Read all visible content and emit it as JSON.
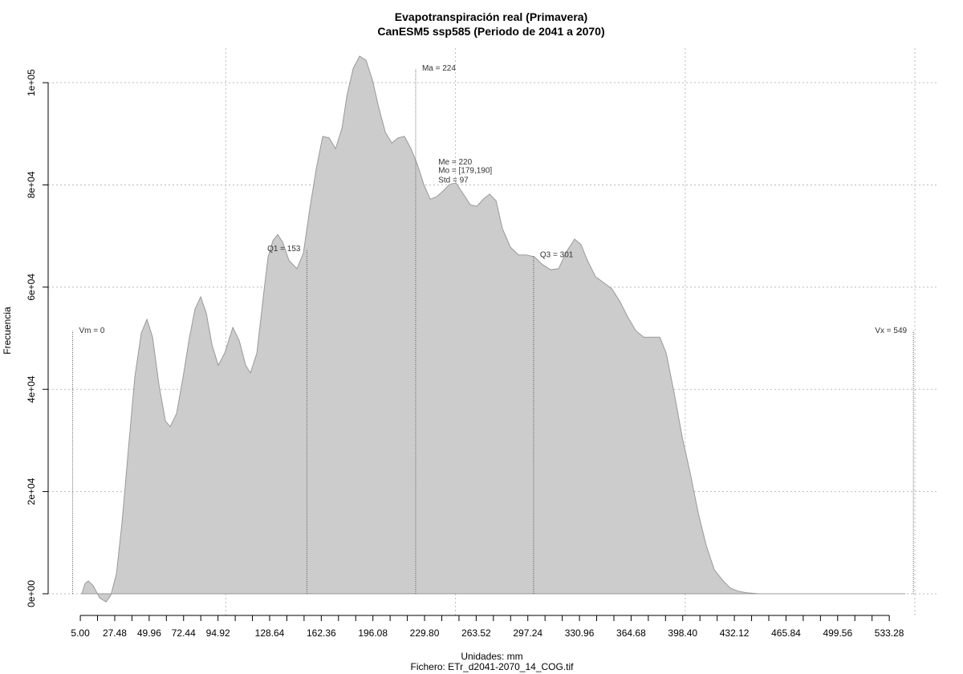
{
  "chart_data": {
    "type": "area",
    "title": "Evapotranspiración real (Primavera)",
    "subtitle": "CanESM5 ssp585 (Periodo de 2041 a 2070)",
    "x_label": "Unidades: mm",
    "caption": "Fichero: ETr_d2041-2070_14_COG.tif",
    "y_label": "Frecuencia",
    "color": "#cccccc",
    "line_color": "#999999",
    "grid": true,
    "xlim": [
      -16,
      565.7
    ],
    "ylim": [
      -4240,
      106760
    ],
    "xgrid": [
      100,
      250,
      400,
      550
    ],
    "xticks": [
      {
        "value": 5.0,
        "label": "5.00"
      },
      {
        "value": 16.24,
        "label": null
      },
      {
        "value": 27.48,
        "label": "27.48"
      },
      {
        "value": 38.72,
        "label": null
      },
      {
        "value": 49.96,
        "label": "49.96"
      },
      {
        "value": 61.2,
        "label": null
      },
      {
        "value": 72.44,
        "label": "72.44"
      },
      {
        "value": 83.68,
        "label": null
      },
      {
        "value": 94.92,
        "label": "94.92"
      },
      {
        "value": 106.16,
        "label": null
      },
      {
        "value": 117.4,
        "label": null
      },
      {
        "value": 128.64,
        "label": "128.64"
      },
      {
        "value": 139.88,
        "label": null
      },
      {
        "value": 151.12,
        "label": null
      },
      {
        "value": 162.36,
        "label": "162.36"
      },
      {
        "value": 173.6,
        "label": null
      },
      {
        "value": 184.84,
        "label": null
      },
      {
        "value": 196.08,
        "label": "196.08"
      },
      {
        "value": 207.32,
        "label": null
      },
      {
        "value": 218.56,
        "label": null
      },
      {
        "value": 229.8,
        "label": "229.80"
      },
      {
        "value": 241.04,
        "label": null
      },
      {
        "value": 252.28,
        "label": null
      },
      {
        "value": 263.52,
        "label": "263.52"
      },
      {
        "value": 274.76,
        "label": null
      },
      {
        "value": 286.0,
        "label": null
      },
      {
        "value": 297.24,
        "label": "297.24"
      },
      {
        "value": 308.48,
        "label": null
      },
      {
        "value": 319.72,
        "label": null
      },
      {
        "value": 330.96,
        "label": "330.96"
      },
      {
        "value": 342.2,
        "label": null
      },
      {
        "value": 353.44,
        "label": null
      },
      {
        "value": 364.68,
        "label": "364.68"
      },
      {
        "value": 375.92,
        "label": null
      },
      {
        "value": 387.16,
        "label": null
      },
      {
        "value": 398.4,
        "label": "398.40"
      },
      {
        "value": 409.64,
        "label": null
      },
      {
        "value": 420.88,
        "label": null
      },
      {
        "value": 432.12,
        "label": "432.12"
      },
      {
        "value": 443.36,
        "label": null
      },
      {
        "value": 454.6,
        "label": null
      },
      {
        "value": 465.84,
        "label": "465.84"
      },
      {
        "value": 477.08,
        "label": null
      },
      {
        "value": 488.32,
        "label": null
      },
      {
        "value": 499.56,
        "label": "499.56"
      },
      {
        "value": 510.8,
        "label": null
      },
      {
        "value": 522.04,
        "label": null
      },
      {
        "value": 533.28,
        "label": "533.28"
      }
    ],
    "yticks": [
      {
        "value": 0,
        "label": "0e+00"
      },
      {
        "value": 20000,
        "label": "2e+04"
      },
      {
        "value": 40000,
        "label": "4e+04"
      },
      {
        "value": 60000,
        "label": "6e+04"
      },
      {
        "value": 80000,
        "label": "8e+04"
      },
      {
        "value": 100000,
        "label": "1e+05"
      }
    ],
    "x": [
      6.0,
      8.1,
      10.2,
      13.4,
      17.6,
      21.8,
      24.9,
      28.6,
      32.3,
      36.4,
      40.6,
      44.8,
      48.5,
      52.2,
      56.4,
      60.6,
      63.7,
      67.9,
      72.1,
      76.3,
      79.9,
      83.6,
      87.3,
      91.0,
      95.1,
      99.3,
      104.6,
      108.8,
      113.0,
      116.1,
      120.3,
      124.5,
      127.6,
      130.8,
      133.9,
      137.1,
      141.3,
      146.5,
      150.7,
      154.9,
      159.1,
      163.3,
      167.5,
      171.7,
      175.9,
      179.0,
      183.2,
      187.4,
      191.6,
      195.8,
      200.0,
      204.2,
      208.4,
      212.5,
      216.7,
      220.9,
      225.1,
      229.3,
      233.5,
      237.7,
      241.9,
      246.1,
      250.3,
      254.5,
      259.7,
      263.9,
      268.1,
      272.3,
      276.5,
      280.7,
      285.9,
      291.2,
      296.4,
      301.6,
      306.9,
      312.1,
      317.3,
      322.6,
      327.8,
      332.0,
      336.2,
      341.5,
      346.7,
      352.0,
      357.2,
      362.4,
      367.7,
      372.9,
      378.2,
      383.4,
      387.6,
      392.8,
      398.1,
      403.3,
      408.6,
      413.8,
      419.0,
      424.3,
      429.5,
      434.8,
      440.0,
      447.9,
      543.8
    ],
    "values": [
      0,
      2000,
      2500,
      1600,
      -800,
      -1600,
      -300,
      3900,
      14100,
      28300,
      42400,
      51000,
      53700,
      50200,
      40800,
      33800,
      32700,
      35300,
      42400,
      50200,
      55700,
      58100,
      54900,
      48700,
      44700,
      47100,
      52100,
      49500,
      44700,
      43200,
      47100,
      58100,
      65900,
      69100,
      70300,
      68800,
      65200,
      63600,
      66700,
      75400,
      83200,
      89500,
      89200,
      87100,
      91100,
      97300,
      102800,
      105200,
      104400,
      100500,
      95000,
      90300,
      88200,
      89200,
      89500,
      87100,
      84000,
      80100,
      77200,
      77700,
      78800,
      80100,
      80400,
      78500,
      76100,
      75800,
      77200,
      78200,
      76900,
      71400,
      67800,
      66300,
      66300,
      65900,
      64400,
      63400,
      63600,
      67000,
      69400,
      68300,
      65200,
      62000,
      60900,
      59700,
      57300,
      54200,
      51500,
      50200,
      50200,
      50200,
      47100,
      39300,
      30600,
      23600,
      15700,
      9400,
      4700,
      2700,
      1100,
      500,
      200,
      0,
      0
    ],
    "annotations": [
      {
        "text": "Vm = 0",
        "x": 0,
        "y": 51500,
        "line": true,
        "side": "right"
      },
      {
        "text": "Q1 = 153",
        "x": 153,
        "y": 67500,
        "line": true,
        "side": "left"
      },
      {
        "text": "Ma = 224",
        "x": 224,
        "y": 102800,
        "line": true,
        "side": "right"
      },
      {
        "text": "Q3 = 301",
        "x": 301,
        "y": 66300,
        "line": true,
        "side": "right"
      },
      {
        "text": "Vx = 549",
        "x": 549,
        "y": 51500,
        "line": true,
        "side": "left"
      },
      {
        "text": "Me = 220",
        "x": 238.8,
        "y": 84500,
        "line": false,
        "side": "right"
      },
      {
        "text": "Mo = [179,190]",
        "x": 238.8,
        "y": 82800,
        "line": false,
        "side": "right"
      },
      {
        "text": "Std = 97",
        "x": 238.8,
        "y": 80900,
        "line": false,
        "side": "right"
      }
    ]
  }
}
